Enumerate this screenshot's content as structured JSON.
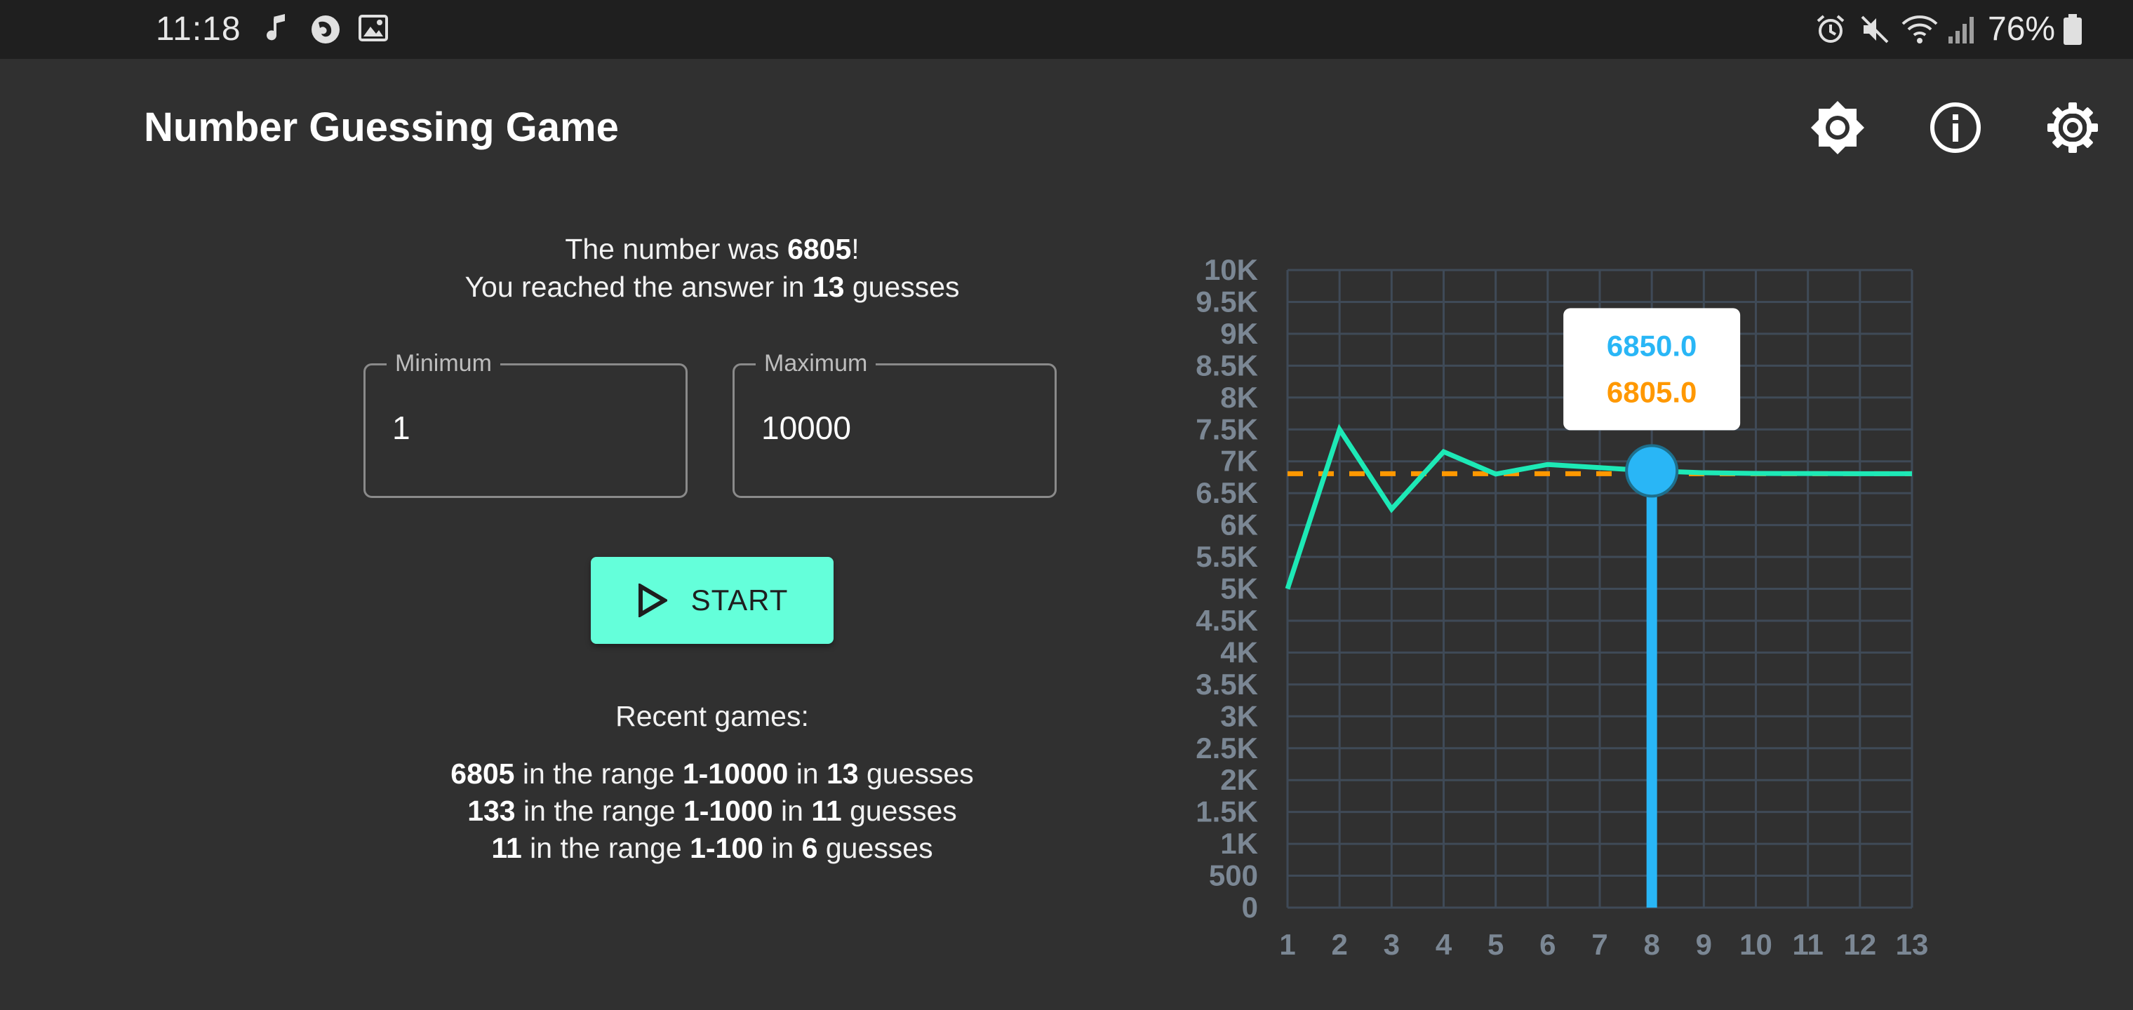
{
  "status_bar": {
    "time": "11:18",
    "left_icons": [
      "music-note-icon",
      "firefox-icon",
      "image-icon"
    ],
    "right_icons": [
      "alarm-icon",
      "mute-icon",
      "wifi-icon",
      "signal-icon"
    ],
    "battery": "76%"
  },
  "app_bar": {
    "title": "Number Guessing Game",
    "actions": [
      "brightness-icon",
      "info-icon",
      "settings-icon"
    ]
  },
  "result": {
    "line1_prefix": "The number was ",
    "number": "6805",
    "line1_suffix": "!",
    "line2_prefix": "You reached the answer in ",
    "guesses": "13",
    "line2_suffix": " guesses"
  },
  "range": {
    "min_label": "Minimum",
    "min_value": "1",
    "max_label": "Maximum",
    "max_value": "10000"
  },
  "start_button": {
    "label": "START"
  },
  "recent": {
    "title": "Recent games:",
    "in_the_range": " in the range ",
    "in": " in ",
    "guesses": " guesses",
    "games": [
      {
        "answer": "6805",
        "range": "1-10000",
        "guesses": "13"
      },
      {
        "answer": "133",
        "range": "1-1000",
        "guesses": "11"
      },
      {
        "answer": "11",
        "range": "1-100",
        "guesses": "6"
      }
    ]
  },
  "chart_data": {
    "type": "line",
    "x": [
      1,
      2,
      3,
      4,
      5,
      6,
      7,
      8,
      9,
      10,
      11,
      12,
      13
    ],
    "series": [
      {
        "values": [
          5000,
          7500,
          6250,
          7150,
          6800,
          6950,
          6900,
          6850,
          6820,
          6810,
          6808,
          6806,
          6805
        ],
        "color": "#1de9b6"
      }
    ],
    "target": {
      "value": 6805,
      "color": "#ff9800"
    },
    "ylim": [
      0,
      10000
    ],
    "y_ticks": [
      "0",
      "500",
      "1K",
      "1.5K",
      "2K",
      "2.5K",
      "3K",
      "3.5K",
      "4K",
      "4.5K",
      "5K",
      "5.5K",
      "6K",
      "6.5K",
      "7K",
      "7.5K",
      "8K",
      "8.5K",
      "9K",
      "9.5K",
      "10K"
    ],
    "x_ticks": [
      "1",
      "2",
      "3",
      "4",
      "5",
      "6",
      "7",
      "8",
      "9",
      "10",
      "11",
      "12",
      "13"
    ],
    "grid": true,
    "highlight": {
      "x": 8,
      "color": "#29b6f6"
    },
    "tooltip": {
      "guess": "6850.0",
      "answer": "6805.0"
    }
  },
  "colors": {
    "background": "#303030",
    "status_bar": "#1f1f1f",
    "accent": "#64ffda",
    "line": "#1de9b6",
    "target_line": "#ff9800",
    "highlight": "#29b6f6",
    "grid": "#3f4a57",
    "axis_text": "#7b8794"
  }
}
